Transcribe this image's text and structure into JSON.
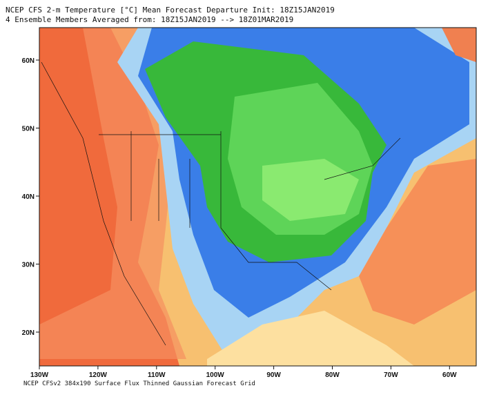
{
  "header": {
    "line1": "NCEP CFS 2-m Temperature [°C] Mean Forecast Departure Init: 18Z15JAN2019",
    "line2": "4 Ensemble Members Averaged from: 18Z15JAN2019 --> 18Z01MAR2019"
  },
  "map": {
    "latitude_labels": [
      "60N",
      "50N",
      "40N",
      "30N",
      "20N"
    ],
    "longitude_labels": [
      "130W",
      "120W",
      "110W",
      "100W",
      "90W",
      "80W",
      "70W",
      "60W"
    ]
  },
  "footer": "NCEP CFSv2 384x190 Surface Flux Thinned Gaussian Forecast Grid"
}
